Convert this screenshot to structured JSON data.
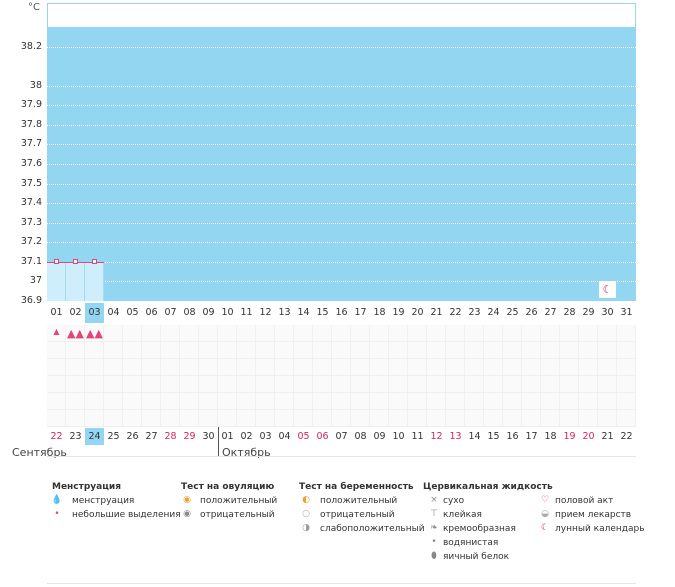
{
  "chart_data": {
    "type": "line",
    "ylabel": "°C",
    "ylim": [
      36.9,
      38.3
    ],
    "yticks": [
      "38.2",
      "38",
      "37.9",
      "37.8",
      "37.7",
      "37.6",
      "37.5",
      "37.4",
      "37.3",
      "37.2",
      "37.1",
      "37",
      "36.9"
    ],
    "cycle_days": [
      "01",
      "02",
      "03",
      "04",
      "05",
      "06",
      "07",
      "08",
      "09",
      "10",
      "11",
      "12",
      "13",
      "14",
      "15",
      "16",
      "17",
      "18",
      "19",
      "20",
      "21",
      "22",
      "23",
      "24",
      "25",
      "26",
      "27",
      "28",
      "29",
      "30",
      "31"
    ],
    "series": [
      {
        "values": [
          37.1,
          37.1,
          37.1
        ]
      }
    ],
    "highlight_day": "03",
    "moon_day": "30"
  },
  "menstruation_marks": [
    {
      "day_index": 0,
      "icon": "drop-small-icon"
    },
    {
      "day_index": 1,
      "icon": "drop-icon"
    },
    {
      "day_index": 2,
      "icon": "drop-icon"
    }
  ],
  "dates": [
    {
      "n": "22",
      "red": true
    },
    {
      "n": "23",
      "red": false
    },
    {
      "n": "24",
      "red": false,
      "hl": true
    },
    {
      "n": "25",
      "red": false
    },
    {
      "n": "26",
      "red": false
    },
    {
      "n": "27",
      "red": false
    },
    {
      "n": "28",
      "red": true
    },
    {
      "n": "29",
      "red": true
    },
    {
      "n": "30",
      "red": false
    },
    {
      "n": "01",
      "red": false
    },
    {
      "n": "02",
      "red": false
    },
    {
      "n": "03",
      "red": false
    },
    {
      "n": "04",
      "red": false
    },
    {
      "n": "05",
      "red": true
    },
    {
      "n": "06",
      "red": true
    },
    {
      "n": "07",
      "red": false
    },
    {
      "n": "08",
      "red": false
    },
    {
      "n": "09",
      "red": false
    },
    {
      "n": "10",
      "red": false
    },
    {
      "n": "11",
      "red": false
    },
    {
      "n": "12",
      "red": true
    },
    {
      "n": "13",
      "red": true
    },
    {
      "n": "14",
      "red": false
    },
    {
      "n": "15",
      "red": false
    },
    {
      "n": "16",
      "red": false
    },
    {
      "n": "17",
      "red": false
    },
    {
      "n": "18",
      "red": false
    },
    {
      "n": "19",
      "red": true
    },
    {
      "n": "20",
      "red": true
    },
    {
      "n": "21",
      "red": false
    },
    {
      "n": "22",
      "red": false
    }
  ],
  "months": {
    "sep": "Сентябрь",
    "oct": "Октябрь"
  },
  "legend": {
    "menstruation": {
      "title": "Менструация",
      "items": [
        "менструация",
        "небольшие выделения"
      ]
    },
    "ovulation": {
      "title": "Тест на овуляцию",
      "items": [
        "положительный",
        "отрицательный"
      ]
    },
    "pregnancy": {
      "title": "Тест на беременность",
      "items": [
        "положительный",
        "отрицательный",
        "слабоположительный"
      ]
    },
    "cervical": {
      "title": "Цервикальная жидкость",
      "items": [
        "сухо",
        "клейкая",
        "кремообразная",
        "водянистая",
        "яичный белок"
      ]
    },
    "other": {
      "items": [
        "половой акт",
        "прием лекарств",
        "лунный календарь"
      ]
    }
  },
  "colors": {
    "fill": "#92d6f2",
    "line": "#e0457b",
    "red": "#d6245a"
  }
}
